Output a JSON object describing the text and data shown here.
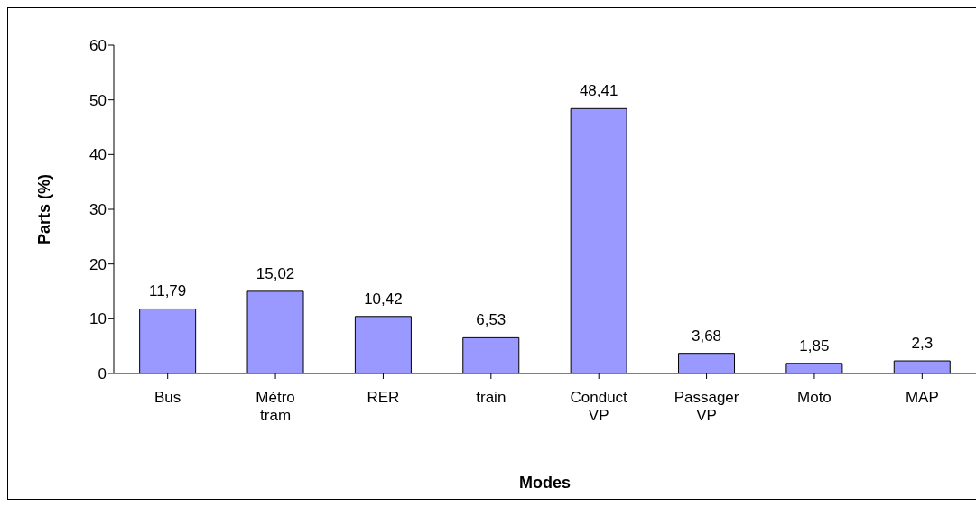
{
  "chart_data": {
    "type": "bar",
    "xlabel": "Modes",
    "ylabel": "Parts (%)",
    "categories": [
      "Bus",
      "Métro tram",
      "RER",
      "train",
      "Conduct VP",
      "Passager VP",
      "Moto",
      "MAP"
    ],
    "values": [
      11.79,
      15.02,
      10.42,
      6.53,
      48.41,
      3.68,
      1.85,
      2.3
    ],
    "value_labels": [
      "11,79",
      "15,02",
      "10,42",
      "6,53",
      "48,41",
      "3,68",
      "1,85",
      "2,3"
    ],
    "color": "#9999ff",
    "ylim": [
      0,
      60
    ],
    "yticks": [
      0,
      10,
      20,
      30,
      40,
      50,
      60
    ],
    "legend": false
  }
}
